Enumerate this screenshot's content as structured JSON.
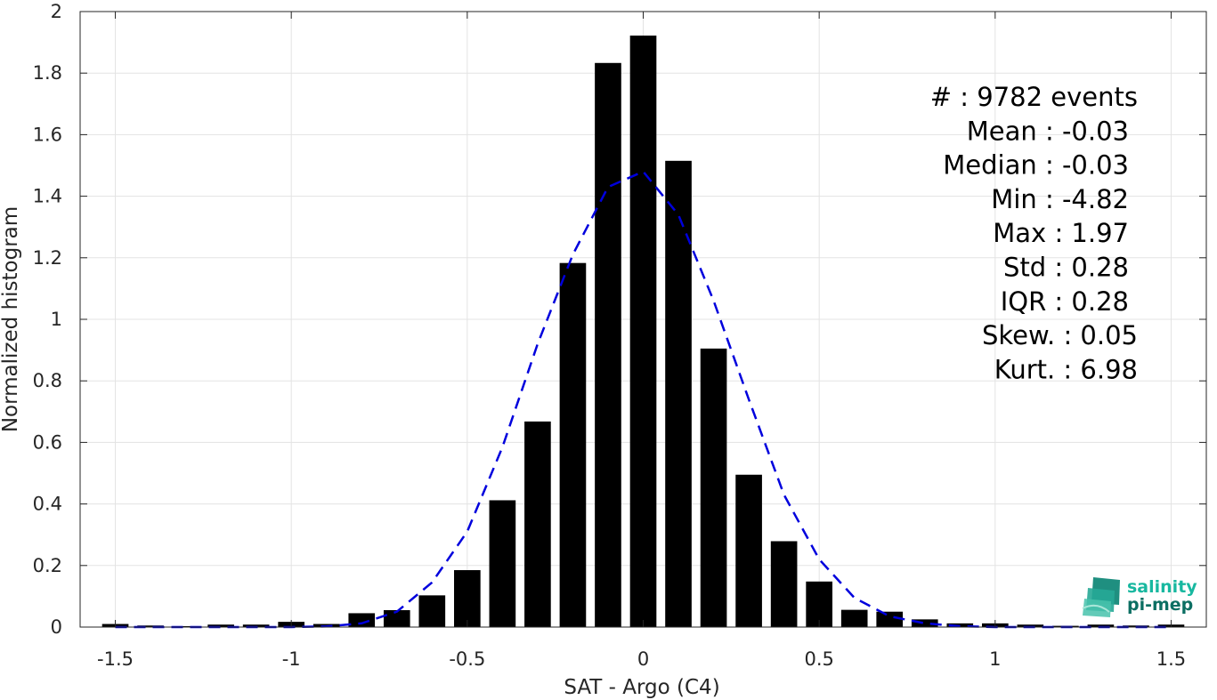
{
  "chart_data": {
    "type": "bar",
    "xlabel": "SAT - Argo (C4)",
    "ylabel": "Normalized histogram",
    "xlim": [
      -1.6,
      1.6
    ],
    "ylim": [
      0,
      2
    ],
    "xticks": [
      -1.5,
      -1,
      -0.5,
      0,
      0.5,
      1,
      1.5
    ],
    "xtick_labels": [
      "-1.5",
      "-1",
      "-0.5",
      "0",
      "0.5",
      "1",
      "1.5"
    ],
    "yticks": [
      0,
      0.2,
      0.4,
      0.6,
      0.8,
      1,
      1.2,
      1.4,
      1.6,
      1.8,
      2
    ],
    "ytick_labels": [
      "0",
      "0.2",
      "0.4",
      "0.6",
      "0.8",
      "1",
      "1.2",
      "1.4",
      "1.6",
      "1.8",
      "2"
    ],
    "grid": true,
    "bar_color": "#000000",
    "bar_width": 0.075,
    "bars": {
      "x": [
        -1.5,
        -1.4,
        -1.3,
        -1.2,
        -1.1,
        -1.0,
        -0.9,
        -0.8,
        -0.7,
        -0.6,
        -0.5,
        -0.4,
        -0.3,
        -0.2,
        -0.1,
        0.0,
        0.1,
        0.2,
        0.3,
        0.4,
        0.5,
        0.6,
        0.7,
        0.8,
        0.9,
        1.0,
        1.1,
        1.2,
        1.3,
        1.4,
        1.5
      ],
      "values": [
        0.01,
        0.005,
        0.003,
        0.008,
        0.008,
        0.017,
        0.01,
        0.045,
        0.055,
        0.103,
        0.185,
        0.412,
        0.668,
        1.183,
        1.833,
        1.922,
        1.515,
        0.905,
        0.495,
        0.279,
        0.148,
        0.056,
        0.05,
        0.025,
        0.012,
        0.012,
        0.008,
        0.004,
        0.008,
        0.005,
        0.008
      ]
    },
    "fit_curve": {
      "style": "dashed",
      "color": "#0000dd",
      "x": [
        -1.5,
        -1.4,
        -1.3,
        -1.2,
        -1.1,
        -1.0,
        -0.9,
        -0.8,
        -0.7,
        -0.6,
        -0.5,
        -0.4,
        -0.3,
        -0.2,
        -0.1,
        0.0,
        0.1,
        0.2,
        0.3,
        0.4,
        0.5,
        0.6,
        0.7,
        0.8,
        0.9,
        1.0,
        1.1,
        1.2,
        1.3,
        1.4,
        1.5
      ],
      "values": [
        0.0,
        0.0,
        0.0,
        0.0,
        0.0,
        0.0,
        0.002,
        0.012,
        0.05,
        0.145,
        0.31,
        0.585,
        0.92,
        1.21,
        1.43,
        1.48,
        1.34,
        1.06,
        0.74,
        0.43,
        0.22,
        0.095,
        0.035,
        0.012,
        0.003,
        0.0,
        0.0,
        0.0,
        0.0,
        0.0,
        0.0
      ]
    },
    "stats": [
      "#  : 9782 events",
      "Mean : -0.03",
      "Median : -0.03",
      "Min : -4.82",
      "Max : 1.97",
      "Std : 0.28",
      "IQR : 0.28",
      "Skew. : 0.05",
      "Kurt. : 6.98"
    ]
  },
  "logo": {
    "line1": "salinity",
    "line2": "pi-mep",
    "color1": "#18b8a0",
    "color2": "#0c6f63"
  }
}
